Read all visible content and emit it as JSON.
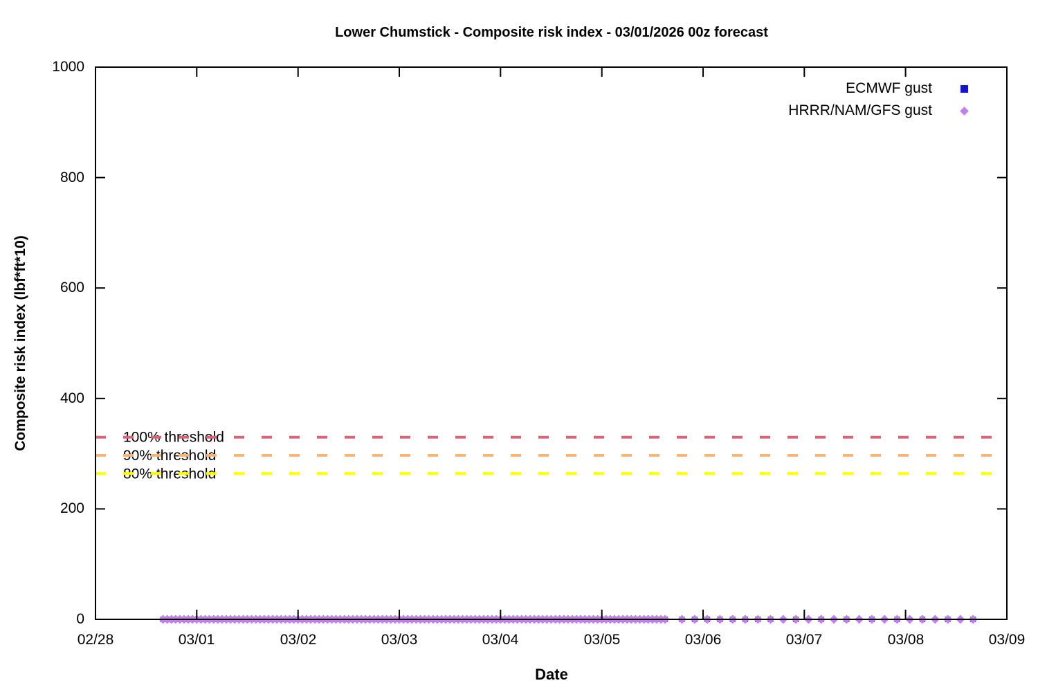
{
  "title": "Lower Chumstick - Composite risk index - 03/01/2026 00z forecast",
  "chart_data": {
    "type": "scatter",
    "title": "Lower Chumstick - Composite risk index - 03/01/2026 00z forecast",
    "xlabel": "Date",
    "ylabel": "Composite risk index (lbf*ft*10)",
    "ylim": [
      0,
      1000
    ],
    "yticks": [
      0,
      200,
      400,
      600,
      800,
      1000
    ],
    "xticks": [
      "02/28",
      "03/01",
      "03/02",
      "03/03",
      "03/04",
      "03/05",
      "03/06",
      "03/07",
      "03/08",
      "03/09"
    ],
    "grid": false,
    "legend_position": "top-right-inside",
    "axis_color": "#000000",
    "thresholds": [
      {
        "label": "100% threshold",
        "value": 330,
        "color": "#d8647a"
      },
      {
        "label": "90% threshold",
        "value": 297,
        "color": "#f7b476"
      },
      {
        "label": "80% threshold",
        "value": 264,
        "color": "#ffff00"
      }
    ],
    "series": [
      {
        "name": "ECMWF gust",
        "marker": "square",
        "color": "#1515cd",
        "y_value": 0,
        "x_unit": "days_after_02_28",
        "segments": [
          {
            "start_day": 0.666667,
            "end_day": 5.666667,
            "interval_days": 0.041667
          },
          {
            "start_day": 5.791667,
            "end_day": 6.666667,
            "interval_days": 0.125
          },
          {
            "start_day": 6.916667,
            "end_day": 8.666667,
            "interval_days": 0.25
          }
        ]
      },
      {
        "name": "HRRR/NAM/GFS gust",
        "marker": "diamond",
        "color": "#be82ea",
        "y_value": 0,
        "x_unit": "days_after_02_28",
        "segments": [
          {
            "start_day": 0.666667,
            "end_day": 5.666667,
            "interval_days": 0.041667
          },
          {
            "start_day": 5.791667,
            "end_day": 8.666667,
            "interval_days": 0.125
          }
        ]
      }
    ]
  }
}
